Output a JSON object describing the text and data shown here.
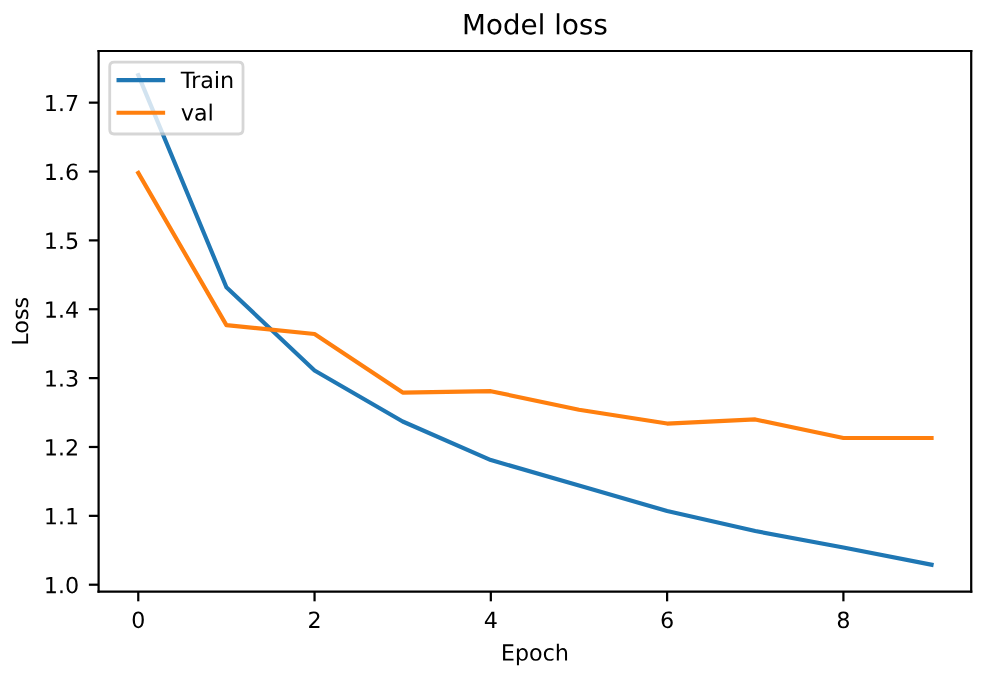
{
  "chart_data": {
    "type": "line",
    "title": "Model loss",
    "xlabel": "Epoch",
    "ylabel": "Loss",
    "x": [
      0,
      1,
      2,
      3,
      4,
      5,
      6,
      7,
      8,
      9
    ],
    "series": [
      {
        "name": "Train",
        "color": "#1f77b4",
        "values": [
          1.74,
          1.432,
          1.311,
          1.237,
          1.181,
          1.144,
          1.107,
          1.078,
          1.054,
          1.029
        ]
      },
      {
        "name": "val",
        "color": "#ff7f0e",
        "values": [
          1.598,
          1.377,
          1.364,
          1.279,
          1.281,
          1.254,
          1.234,
          1.24,
          1.213,
          1.213
        ]
      }
    ],
    "xlim": [
      -0.45,
      9.45
    ],
    "ylim": [
      0.99,
      1.775
    ],
    "xticks": [
      0,
      2,
      4,
      6,
      8
    ],
    "yticks": [
      {
        "value": 1.0,
        "label": "1.0"
      },
      1.1,
      1.2,
      1.3,
      1.4,
      1.5,
      1.6,
      1.7
    ],
    "legend": "top left",
    "grid": false
  }
}
